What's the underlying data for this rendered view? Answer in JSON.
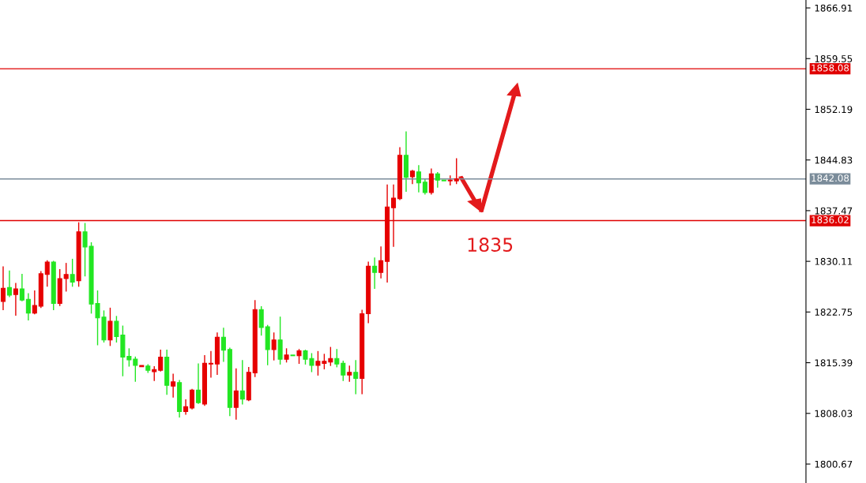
{
  "chart_data": {
    "type": "candlestick",
    "categories": [
      null,
      null,
      null,
      null,
      null,
      null,
      null,
      null,
      null,
      null,
      null,
      null,
      null,
      null,
      null,
      null,
      null,
      null,
      null,
      null,
      null,
      null,
      null,
      null,
      null,
      null,
      null,
      null,
      null,
      null,
      null,
      null,
      null,
      null,
      null,
      null,
      null,
      null,
      null,
      null,
      null,
      null,
      null,
      null,
      null,
      null,
      null,
      null,
      null,
      null,
      null,
      null,
      null,
      null,
      null,
      null,
      null,
      null,
      null,
      null,
      null,
      null,
      null,
      null,
      null,
      null,
      null,
      null,
      null,
      null,
      null,
      null,
      null,
      null,
      null,
      null,
      null,
      null,
      null,
      null,
      null,
      null,
      null,
      null,
      null,
      null,
      null,
      null,
      null,
      null,
      null,
      null,
      null,
      null,
      null,
      null,
      null,
      null,
      null,
      null,
      null,
      null,
      null,
      null,
      null,
      null,
      null,
      null,
      null,
      null,
      null,
      null,
      null,
      null,
      null,
      null,
      null,
      null,
      null,
      null,
      null,
      null,
      null,
      null,
      null,
      null,
      null,
      null
    ],
    "ohlc": [
      [
        1824.3,
        1829.3,
        1823.1,
        1826.2
      ],
      [
        1826.3,
        1828.7,
        1825.0,
        1825.2
      ],
      [
        1825.3,
        1826.9,
        1822.3,
        1826.1
      ],
      [
        1826.1,
        1828.2,
        1824.4,
        1824.5
      ],
      [
        1824.6,
        1825.4,
        1821.6,
        1822.6
      ],
      [
        1822.6,
        1825.8,
        1822.5,
        1823.7
      ],
      [
        1823.6,
        1828.6,
        1823.4,
        1828.3
      ],
      [
        1828.2,
        1830.2,
        1826.5,
        1830.0
      ],
      [
        1830.0,
        1830.1,
        1823.1,
        1824.0
      ],
      [
        1824.0,
        1828.9,
        1823.7,
        1827.6
      ],
      [
        1827.6,
        1829.8,
        1825.8,
        1828.2
      ],
      [
        1828.2,
        1830.4,
        1826.5,
        1827.1
      ],
      [
        1827.3,
        1835.7,
        1826.5,
        1834.4
      ],
      [
        1834.4,
        1835.6,
        1828.0,
        1832.2
      ],
      [
        1832.3,
        1832.8,
        1822.6,
        1823.9
      ],
      [
        1824.0,
        1825.8,
        1818.0,
        1821.9
      ],
      [
        1822.0,
        1822.9,
        1818.4,
        1818.7
      ],
      [
        1818.7,
        1823.3,
        1817.9,
        1821.4
      ],
      [
        1821.4,
        1822.1,
        1818.4,
        1819.2
      ],
      [
        1819.4,
        1820.7,
        1813.5,
        1816.2
      ],
      [
        1816.3,
        1817.4,
        1814.9,
        1815.8
      ],
      [
        1815.9,
        1816.2,
        1812.7,
        1815.0
      ],
      [
        1814.8,
        1815.0,
        1814.8,
        1815.0
      ],
      [
        1814.9,
        1815.1,
        1814.0,
        1814.3
      ],
      [
        1814.1,
        1814.8,
        1812.8,
        1814.4
      ],
      [
        1814.3,
        1817.2,
        1814.2,
        1816.2
      ],
      [
        1816.2,
        1817.2,
        1810.8,
        1812.1
      ],
      [
        1812.0,
        1813.7,
        1810.4,
        1812.6
      ],
      [
        1812.5,
        1812.8,
        1807.5,
        1808.3
      ],
      [
        1808.3,
        1810.0,
        1807.9,
        1809.0
      ],
      [
        1808.8,
        1811.5,
        1808.7,
        1811.4
      ],
      [
        1811.4,
        1815.2,
        1809.5,
        1809.6
      ],
      [
        1809.4,
        1816.4,
        1809.2,
        1815.3
      ],
      [
        1815.2,
        1817.0,
        1813.3,
        1815.3
      ],
      [
        1815.2,
        1819.7,
        1813.7,
        1819.1
      ],
      [
        1819.1,
        1820.4,
        1815.6,
        1817.2
      ],
      [
        1817.3,
        1817.5,
        1807.7,
        1808.9
      ],
      [
        1808.9,
        1814.5,
        1807.2,
        1811.3
      ],
      [
        1811.3,
        1815.7,
        1809.4,
        1810.1
      ],
      [
        1810.0,
        1814.7,
        1809.9,
        1814.0
      ],
      [
        1813.9,
        1824.4,
        1813.4,
        1823.1
      ],
      [
        1823.1,
        1823.5,
        1819.4,
        1820.5
      ],
      [
        1820.6,
        1820.8,
        1815.1,
        1817.3
      ],
      [
        1817.3,
        1819.7,
        1815.8,
        1818.7
      ],
      [
        1818.7,
        1822.0,
        1815.2,
        1815.9
      ],
      [
        1815.9,
        1817.4,
        1815.5,
        1816.5
      ],
      [
        1816.5,
        1816.5,
        1816.4,
        1816.4
      ],
      [
        1816.4,
        1817.3,
        1815.3,
        1817.1
      ],
      [
        1817.1,
        1817.2,
        1815.2,
        1815.9
      ],
      [
        1816.0,
        1816.7,
        1814.1,
        1815.0
      ],
      [
        1815.0,
        1817.0,
        1813.6,
        1815.6
      ],
      [
        1815.3,
        1816.6,
        1814.5,
        1815.6
      ],
      [
        1815.5,
        1817.6,
        1815.0,
        1816.0
      ],
      [
        1816.0,
        1817.3,
        1814.8,
        1815.2
      ],
      [
        1815.3,
        1815.6,
        1812.8,
        1813.6
      ],
      [
        1813.6,
        1814.9,
        1812.7,
        1814.0
      ],
      [
        1814.0,
        1815.7,
        1810.9,
        1813.1
      ],
      [
        1813.1,
        1823.0,
        1810.9,
        1822.5
      ],
      [
        1822.5,
        1830.0,
        1821.2,
        1829.4
      ],
      [
        1829.4,
        1830.6,
        1826.2,
        1828.5
      ],
      [
        1828.5,
        1832.2,
        1827.7,
        1830.2
      ],
      [
        1830.1,
        1841.2,
        1827.1,
        1838.0
      ],
      [
        1837.9,
        1841.2,
        1832.3,
        1839.3
      ],
      [
        1839.2,
        1846.6,
        1839.1,
        1845.5
      ],
      [
        1845.5,
        1848.9,
        1840.3,
        1842.3
      ],
      [
        1842.4,
        1843.3,
        1841.4,
        1843.2
      ],
      [
        1843.1,
        1844.0,
        1840.2,
        1841.5
      ],
      [
        1841.6,
        1842.0,
        1839.9,
        1840.1
      ],
      [
        1840.1,
        1843.5,
        1839.9,
        1842.8
      ],
      [
        1842.8,
        1843.0,
        1840.9,
        1841.9
      ],
      [
        1841.9,
        1841.9,
        1841.8,
        1841.8
      ],
      [
        1841.8,
        1842.5,
        1841.2,
        1841.9
      ],
      [
        1841.8,
        1845.0,
        1841.4,
        1842.1
      ],
      null,
      null,
      null,
      null,
      null,
      null,
      null,
      null,
      null,
      null,
      null,
      null,
      null,
      null,
      null,
      null,
      null,
      null,
      null,
      null,
      null,
      null,
      null,
      null,
      null,
      null,
      null,
      null,
      null,
      null,
      null,
      null,
      null,
      null,
      null,
      null,
      null,
      null,
      null,
      null,
      null,
      null,
      null,
      null,
      null,
      null,
      null,
      null,
      null,
      null,
      null,
      null,
      null,
      null,
      null
    ],
    "colors": [
      "#e60000",
      "#22e622",
      "#e60000",
      "#22e622",
      "#22e622",
      "#e60000",
      "#e60000",
      "#e60000",
      "#22e622",
      "#e60000",
      "#e60000",
      "#22e622",
      "#e60000",
      "#22e622",
      "#22e622",
      "#22e622",
      "#22e622",
      "#e60000",
      "#22e622",
      "#22e622",
      "#22e622",
      "#22e622",
      "#e60000",
      "#22e622",
      "#e60000",
      "#e60000",
      "#22e622",
      "#e60000",
      "#22e622",
      "#e60000",
      "#e60000",
      "#22e622",
      "#e60000",
      "#e60000",
      "#e60000",
      "#22e622",
      "#22e622",
      "#e60000",
      "#22e622",
      "#e60000",
      "#e60000",
      "#22e622",
      "#22e622",
      "#e60000",
      "#22e622",
      "#e60000",
      "#22e622",
      "#e60000",
      "#22e622",
      "#22e622",
      "#e60000",
      "#e60000",
      "#e60000",
      "#22e622",
      "#22e622",
      "#e60000",
      "#22e622",
      "#e60000",
      "#e60000",
      "#22e622",
      "#e60000",
      "#e60000",
      "#e60000",
      "#e60000",
      "#22e622",
      "#e60000",
      "#22e622",
      "#22e622",
      "#e60000",
      "#22e622",
      "#22e622",
      "#e60000",
      "#e60000",
      null,
      null,
      null,
      null,
      null,
      null,
      null,
      null,
      null,
      null,
      null,
      null,
      null,
      null,
      null,
      null,
      null,
      null,
      null,
      null,
      null,
      null,
      null,
      null,
      null,
      null,
      null,
      null,
      null,
      null,
      null,
      null,
      null,
      null,
      null,
      null,
      null,
      null,
      null,
      null,
      null,
      null,
      null,
      null,
      null,
      null,
      null,
      null,
      null,
      null,
      null,
      null,
      null,
      null,
      null
    ],
    "ylim": [
      1797.92,
      1868.06
    ],
    "yticks": [
      1866.91,
      1859.55,
      1852.19,
      1844.83,
      1837.47,
      1830.11,
      1822.75,
      1815.39,
      1808.03,
      1800.67
    ],
    "ref_lines": [
      {
        "axis": "y",
        "value": 1858.08,
        "label": "1858.08",
        "color": "#e00000"
      },
      {
        "axis": "y",
        "value": 1842.08,
        "label": "1842.08",
        "color": "#7b8c9a"
      },
      {
        "axis": "y",
        "value": 1836.02,
        "label": "1836.02",
        "color": "#e00000"
      }
    ],
    "annotations": [
      "1835"
    ],
    "tick_labels": "y",
    "grid": false
  }
}
